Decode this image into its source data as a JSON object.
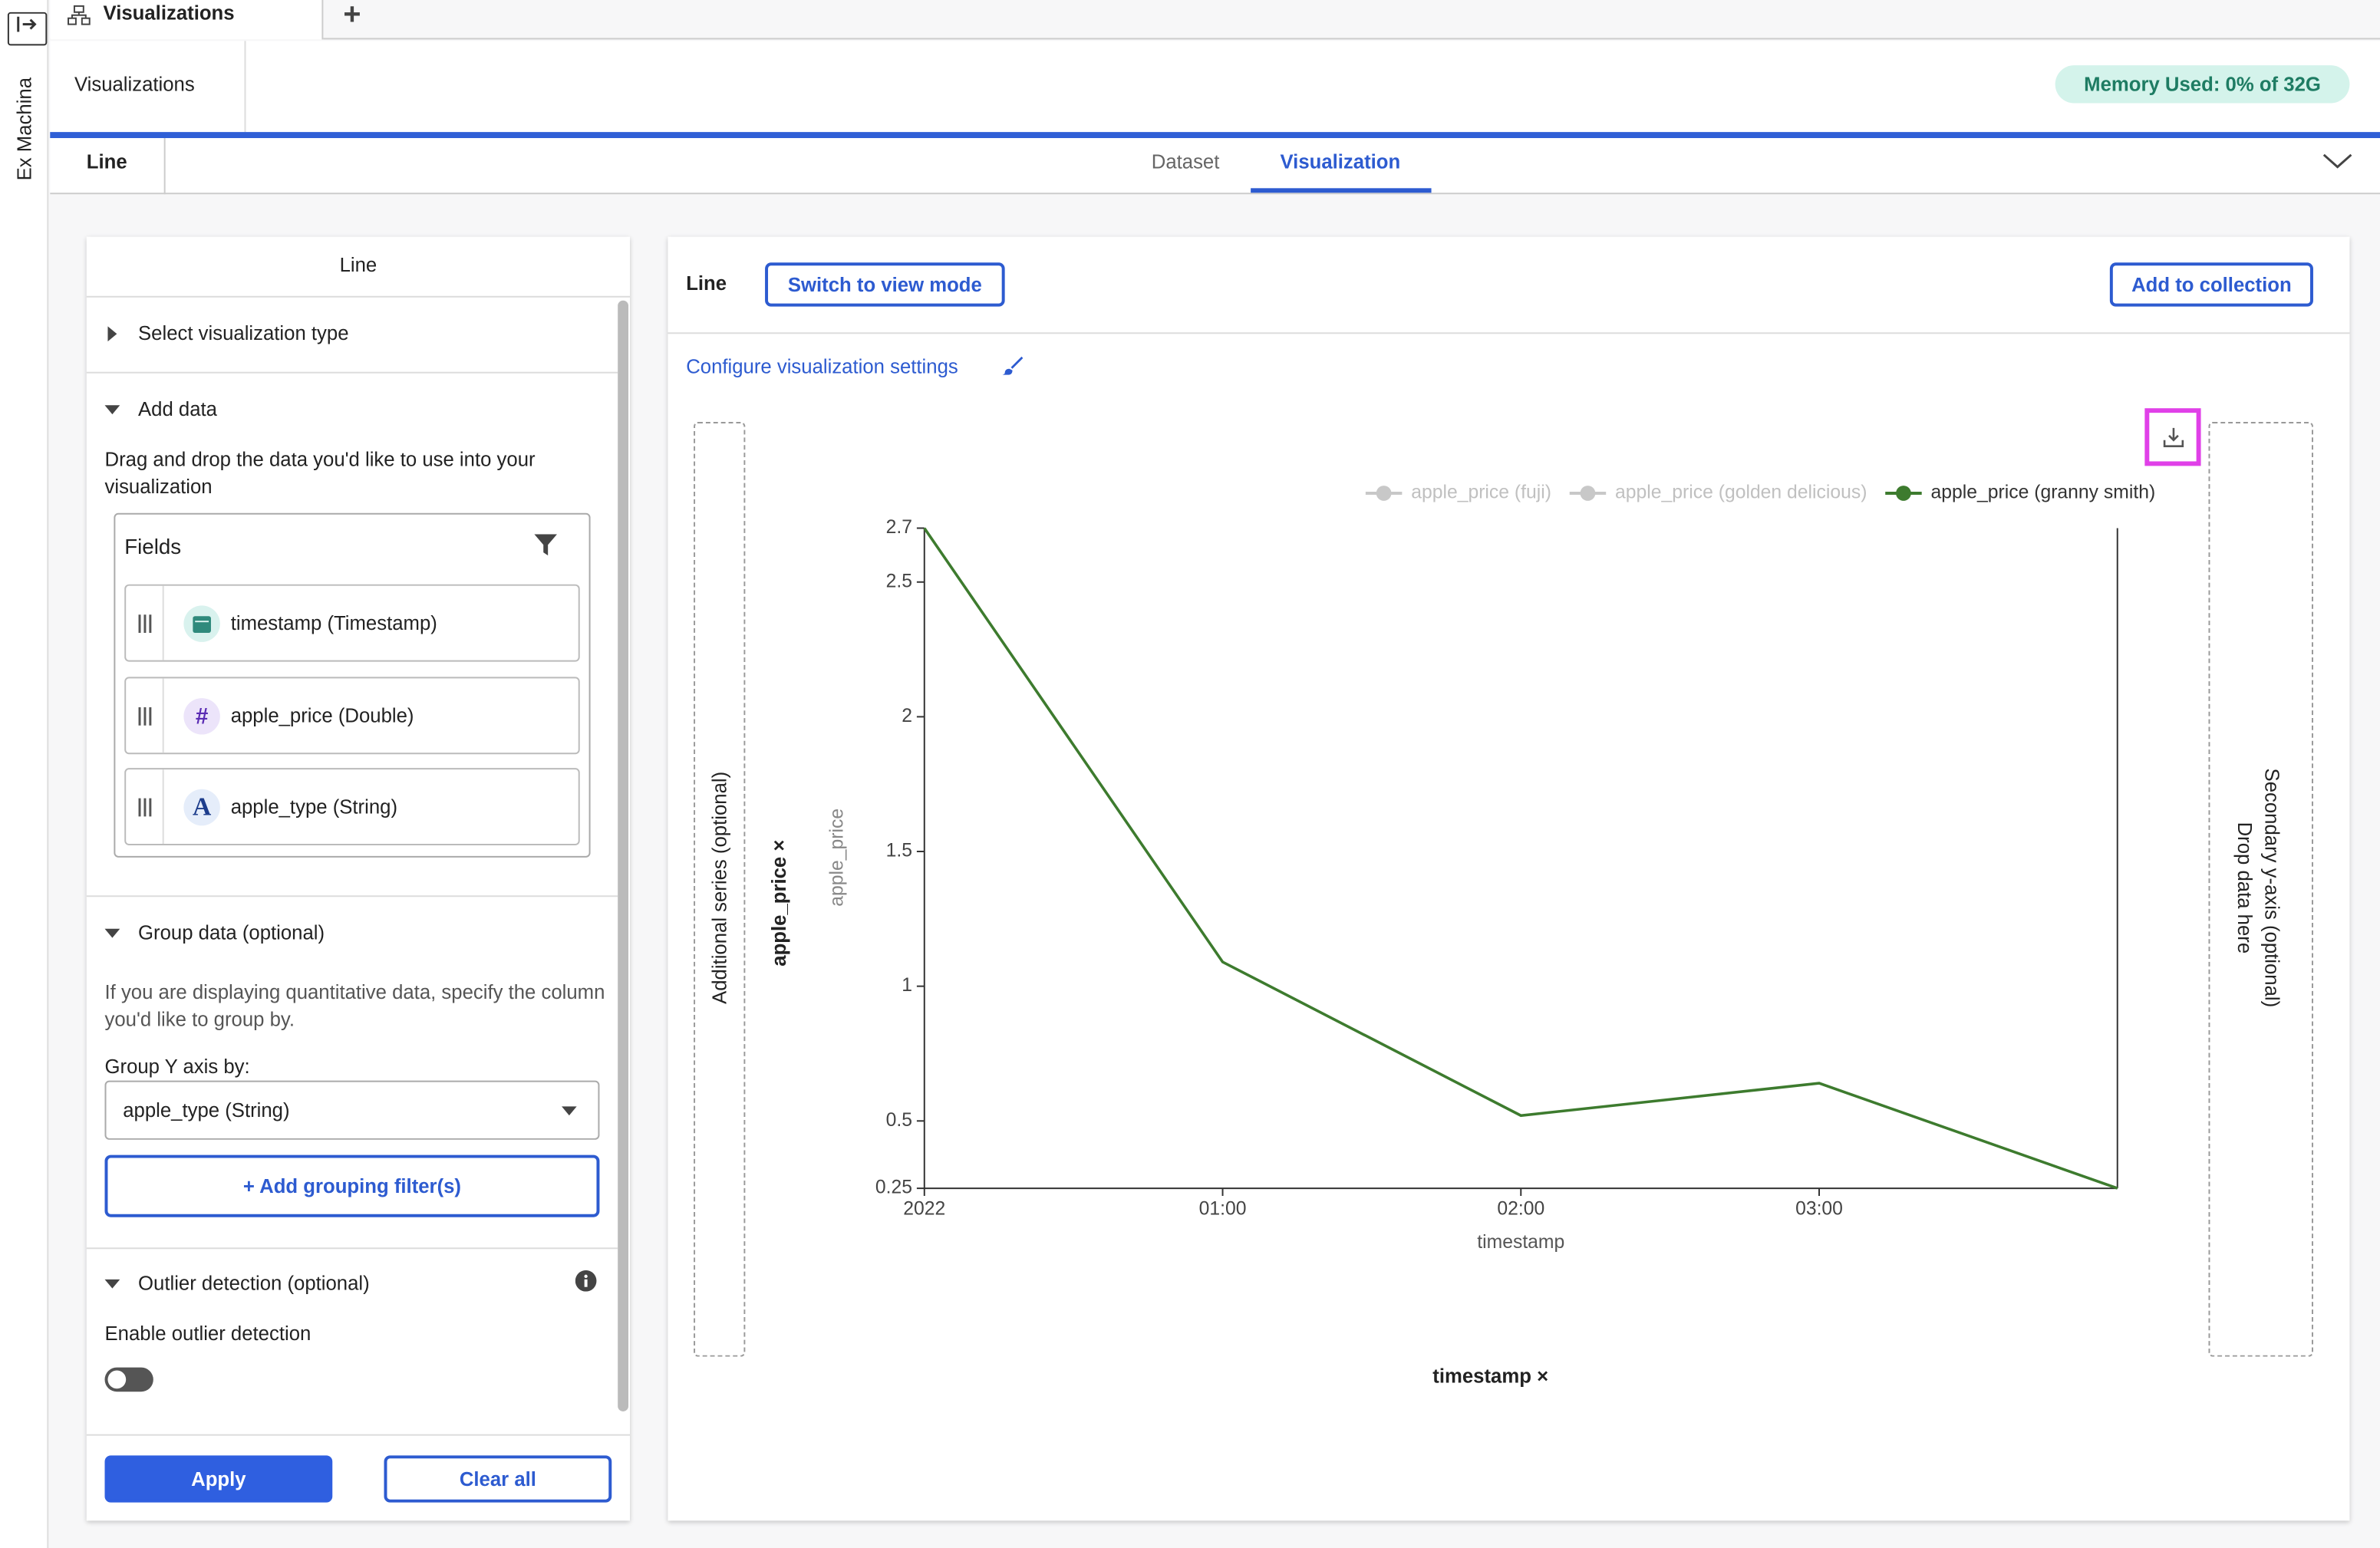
{
  "sidebar": {
    "brand": "Ex Machina"
  },
  "tabs": {
    "active": "Visualizations",
    "add": "+"
  },
  "header": {
    "title": "Visualizations",
    "memory": "Memory Used: 0% of 32G"
  },
  "subheader": {
    "name": "Line",
    "tabs": [
      "Dataset",
      "Visualization"
    ]
  },
  "left_panel": {
    "title": "Line",
    "select_type": "Select visualization type",
    "add_data": {
      "heading": "Add data",
      "description": "Drag and drop the data you'd like to use into your visualization",
      "fields_title": "Fields",
      "fields": [
        {
          "label": "timestamp (Timestamp)"
        },
        {
          "icon": "#",
          "label": "apple_price (Double)"
        },
        {
          "icon": "A",
          "label": "apple_type (String)"
        }
      ]
    },
    "group": {
      "heading": "Group data (optional)",
      "description": "If you are displaying quantitative data, specify the column you'd like to group by.",
      "label": "Group Y axis by:",
      "select": "apple_type (String)",
      "add_filter": "+ Add grouping filter(s)"
    },
    "outlier": {
      "heading": "Outlier detection (optional)",
      "enable": "Enable outlier detection"
    },
    "apply": "Apply",
    "clear": "Clear all"
  },
  "right_panel": {
    "title": "Line",
    "switch": "Switch to view mode",
    "add": "Add to collection",
    "configure": "Configure visualization settings",
    "drop_zones": {
      "series": "Additional series (optional)",
      "y_field": "apple_price ×",
      "x_field": "timestamp ×",
      "secondary": "Secondary y-axis (optional)",
      "secondary_hint": "Drop data here"
    }
  },
  "chart_data": {
    "type": "line",
    "x_label": "timestamp",
    "y_label": "apple_price",
    "categories": [
      "2022",
      "01:00",
      "02:00",
      "03:00",
      null
    ],
    "series": [
      {
        "name": "apple_price (fuji)",
        "color": "#c8c8c8",
        "hidden": true
      },
      {
        "name": "apple_price (golden delicious)",
        "color": "#c8c8c8",
        "hidden": true
      },
      {
        "name": "apple_price (granny smith)",
        "color": "#3d7b2e",
        "values": [
          2.7,
          1.09,
          0.52,
          0.64,
          0.25
        ]
      }
    ],
    "ylim": [
      0.25,
      2.7
    ],
    "yticks": [
      0.25,
      0.5,
      1,
      1.5,
      2,
      2.5,
      2.7
    ]
  }
}
